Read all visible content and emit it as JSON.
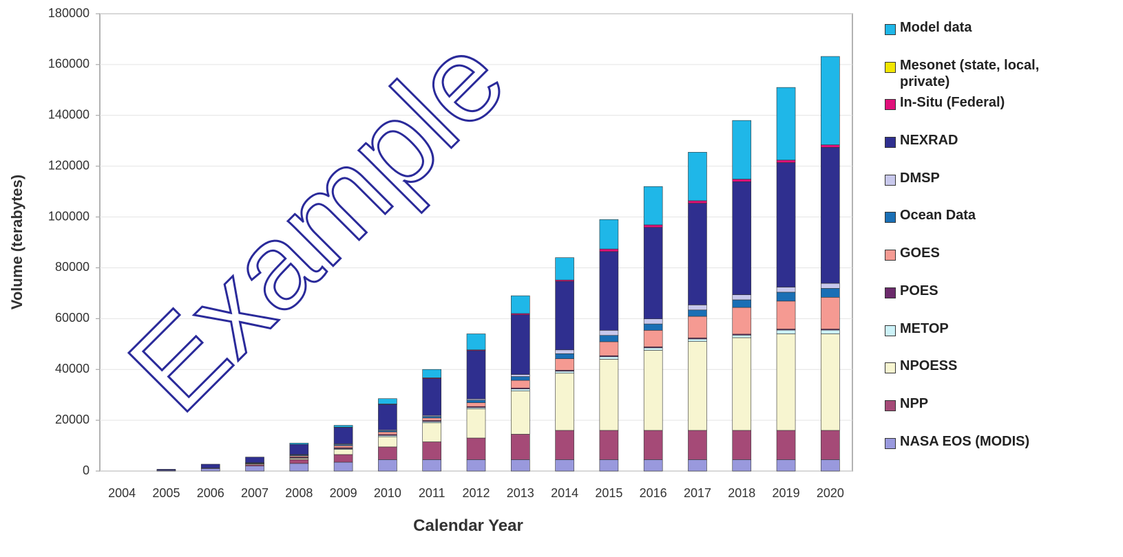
{
  "chart_data": {
    "type": "stacked_bar",
    "xlabel": "Calendar Year",
    "ylabel": "Volume (terabytes)",
    "watermark": "Example",
    "categories": [
      "2004",
      "2005",
      "2006",
      "2007",
      "2008",
      "2009",
      "2010",
      "2011",
      "2012",
      "2013",
      "2014",
      "2015",
      "2016",
      "2017",
      "2018",
      "2019",
      "2020"
    ],
    "ylim": [
      0,
      180000
    ],
    "yticks": [
      0,
      20000,
      40000,
      60000,
      80000,
      100000,
      120000,
      140000,
      160000,
      180000
    ],
    "grid": true,
    "series": [
      {
        "name": "NASA EOS (MODIS)",
        "color": "#9999dd",
        "values": [
          0,
          300,
          1000,
          2000,
          3000,
          3500,
          4500,
          4500,
          4500,
          4500,
          4500,
          4500,
          4500,
          4500,
          4500,
          4500,
          4500
        ]
      },
      {
        "name": "NPP",
        "color": "#a54a77",
        "values": [
          0,
          0,
          200,
          500,
          1500,
          3000,
          5000,
          7000,
          8500,
          10000,
          11500,
          11500,
          11500,
          11500,
          11500,
          11500,
          11500
        ]
      },
      {
        "name": "NPOESS",
        "color": "#f7f5d0",
        "values": [
          0,
          0,
          0,
          300,
          500,
          2000,
          4000,
          7500,
          11500,
          17000,
          22500,
          28000,
          31500,
          35000,
          36500,
          38000,
          38000
        ]
      },
      {
        "name": "METOP",
        "color": "#ccf2f8",
        "values": [
          0,
          0,
          0,
          0,
          200,
          300,
          500,
          500,
          500,
          800,
          800,
          1000,
          1000,
          1000,
          1000,
          1500,
          1500
        ]
      },
      {
        "name": "POES",
        "color": "#6b2a6b",
        "values": [
          0,
          0,
          0,
          0,
          300,
          400,
          400,
          400,
          400,
          400,
          400,
          400,
          400,
          400,
          400,
          400,
          400
        ]
      },
      {
        "name": "GOES",
        "color": "#f59a92",
        "values": [
          0,
          0,
          0,
          200,
          500,
          800,
          1000,
          1000,
          1500,
          3000,
          4500,
          5500,
          6500,
          8500,
          10500,
          11000,
          12500
        ]
      },
      {
        "name": "Ocean Data",
        "color": "#1a6fb5",
        "values": [
          0,
          0,
          0,
          200,
          300,
          400,
          500,
          600,
          1000,
          1500,
          2000,
          2500,
          2500,
          2500,
          3000,
          3500,
          3500
        ]
      },
      {
        "name": "DMSP",
        "color": "#c8c8ec",
        "values": [
          0,
          0,
          0,
          100,
          200,
          300,
          300,
          400,
          500,
          800,
          1500,
          2000,
          2000,
          2000,
          2000,
          2000,
          2000
        ]
      },
      {
        "name": "NEXRAD",
        "color": "#2f2f8f",
        "values": [
          0,
          400,
          1500,
          2200,
          4000,
          6500,
          10000,
          14500,
          19000,
          23500,
          27000,
          31000,
          36000,
          40000,
          44500,
          49000,
          53500
        ]
      },
      {
        "name": "In-Situ (Federal)",
        "color": "#e0107a",
        "values": [
          0,
          0,
          0,
          0,
          0,
          100,
          200,
          300,
          300,
          500,
          500,
          1000,
          1000,
          1000,
          1000,
          1000,
          1000
        ]
      },
      {
        "name": "Mesonet (state, local, private)",
        "color": "#f2e600",
        "values": [
          0,
          0,
          0,
          0,
          0,
          0,
          0,
          0,
          0,
          0,
          0,
          0,
          0,
          0,
          0,
          0,
          0
        ]
      },
      {
        "name": "Model data",
        "color": "#1fb7e8",
        "values": [
          0,
          0,
          0,
          0,
          500,
          700,
          2100,
          3300,
          6300,
          7000,
          8800,
          11600,
          15100,
          19100,
          23100,
          28600,
          34800
        ]
      }
    ]
  }
}
